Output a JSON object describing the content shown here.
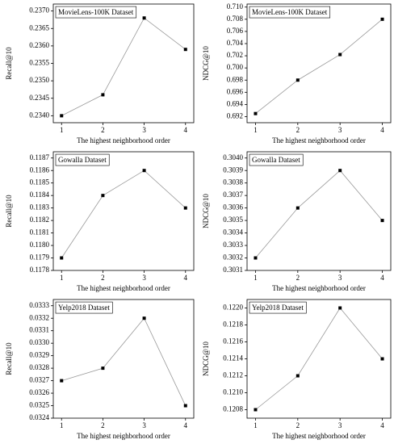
{
  "chart_data": [
    {
      "type": "line",
      "title": "MovieLens-100K Dataset",
      "x_label": "The highest neighborhood order",
      "y_label": "Recall@10",
      "x": [
        1,
        2,
        3,
        4
      ],
      "values": [
        0.234,
        0.2346,
        0.2368,
        0.2359
      ],
      "color": "#000000",
      "xlim": [
        0.8,
        4.2
      ],
      "xticks": [
        1,
        2,
        3,
        4
      ],
      "ylim": [
        0.2338,
        0.2372
      ],
      "yticks": [
        {
          "value": 0.234,
          "label": "0.2340"
        },
        0.2345,
        {
          "value": 0.235,
          "label": "0.2350"
        },
        0.2355,
        {
          "value": 0.236,
          "label": "0.2360"
        },
        0.2365,
        {
          "value": 0.237,
          "label": "0.2370"
        }
      ]
    },
    {
      "type": "line",
      "title": "MovieLens-100K Dataset",
      "x_label": "The highest neighborhood order",
      "y_label": "NDCG@10",
      "x": [
        1,
        2,
        3,
        4
      ],
      "values": [
        0.6925,
        0.698,
        0.7022,
        0.708
      ],
      "color": "#000000",
      "xlim": [
        0.8,
        4.2
      ],
      "xticks": [
        1,
        2,
        3,
        4
      ],
      "ylim": [
        0.691,
        0.7105
      ],
      "yticks": [
        0.692,
        0.694,
        0.696,
        0.698,
        {
          "value": 0.7,
          "label": "0.700"
        },
        0.702,
        0.704,
        0.706,
        0.708,
        {
          "value": 0.71,
          "label": "0.710"
        }
      ]
    },
    {
      "type": "line",
      "title": "Gowalla Dataset",
      "x_label": "The highest neighborhood order",
      "y_label": "Recall@10",
      "x": [
        1,
        2,
        3,
        4
      ],
      "values": [
        0.1179,
        0.1184,
        0.1186,
        0.1183
      ],
      "color": "#000000",
      "xlim": [
        0.8,
        4.2
      ],
      "xticks": [
        1,
        2,
        3,
        4
      ],
      "ylim": [
        0.1178,
        0.11875
      ],
      "yticks": [
        0.1178,
        0.1179,
        {
          "value": 0.118,
          "label": "0.1180"
        },
        0.1181,
        0.1182,
        0.1183,
        0.1184,
        0.1185,
        0.1186,
        0.1187
      ]
    },
    {
      "type": "line",
      "title": "Gowalla Dataset",
      "x_label": "The highest neighborhood order",
      "y_label": "NDCG@10",
      "x": [
        1,
        2,
        3,
        4
      ],
      "values": [
        0.3032,
        0.3036,
        0.3039,
        0.3035
      ],
      "color": "#000000",
      "xlim": [
        0.8,
        4.2
      ],
      "xticks": [
        1,
        2,
        3,
        4
      ],
      "ylim": [
        0.3031,
        0.30405
      ],
      "yticks": [
        0.3031,
        0.3032,
        0.3033,
        0.3034,
        0.3035,
        0.3036,
        0.3037,
        0.3038,
        0.3039,
        {
          "value": 0.304,
          "label": "0.3040"
        }
      ]
    },
    {
      "type": "line",
      "title": "Yelp2018 Dataset",
      "x_label": "The highest neighborhood order",
      "y_label": "Recall@10",
      "x": [
        1,
        2,
        3,
        4
      ],
      "values": [
        0.0327,
        0.0328,
        0.0332,
        0.0325
      ],
      "color": "#000000",
      "xlim": [
        0.8,
        4.2
      ],
      "xticks": [
        1,
        2,
        3,
        4
      ],
      "ylim": [
        0.0324,
        0.03335
      ],
      "yticks": [
        0.0324,
        0.0325,
        0.0326,
        0.0327,
        0.0328,
        0.0329,
        {
          "value": 0.033,
          "label": "0.0330"
        },
        0.0331,
        0.0332,
        0.0333
      ]
    },
    {
      "type": "line",
      "title": "Yelp2018 Dataset",
      "x_label": "The highest neighborhood order",
      "y_label": "NDCG@10",
      "x": [
        1,
        2,
        3,
        4
      ],
      "values": [
        0.1208,
        0.1212,
        0.122,
        0.1214
      ],
      "color": "#000000",
      "xlim": [
        0.8,
        4.2
      ],
      "xticks": [
        1,
        2,
        3,
        4
      ],
      "ylim": [
        0.1207,
        0.1221
      ],
      "yticks": [
        0.1208,
        {
          "value": 0.121,
          "label": "0.1210"
        },
        0.1212,
        0.1214,
        0.1216,
        0.1218,
        {
          "value": 0.122,
          "label": "0.1220"
        }
      ]
    }
  ]
}
